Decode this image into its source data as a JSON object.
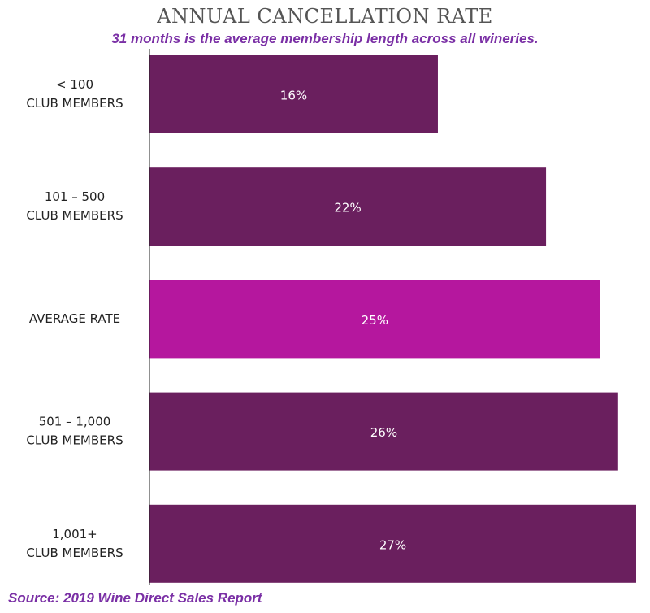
{
  "chart_data": {
    "type": "bar",
    "orientation": "horizontal",
    "title": "ANNUAL CANCELLATION RATE",
    "subtitle": "31 months is the average membership length across all wineries.",
    "source": "Source: 2019 Wine Direct Sales Report",
    "categories": [
      [
        "< 100",
        "CLUB MEMBERS"
      ],
      [
        "101 – 500",
        "CLUB MEMBERS"
      ],
      [
        "AVERAGE RATE"
      ],
      [
        "501 – 1,000",
        "CLUB MEMBERS"
      ],
      [
        "1,001+",
        "CLUB MEMBERS"
      ]
    ],
    "values": [
      16,
      22,
      25,
      26,
      27
    ],
    "value_labels": [
      "16%",
      "22%",
      "25%",
      "26%",
      "27%"
    ],
    "highlight_index": 2,
    "xlim": [
      0,
      27
    ],
    "colors": {
      "bar": "#6a1f5e",
      "highlight": "#b5179e",
      "axis": "#222222"
    }
  }
}
